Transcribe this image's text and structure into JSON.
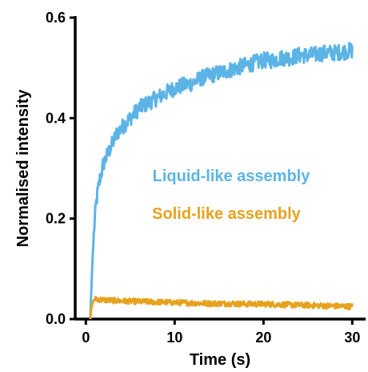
{
  "chart_data": {
    "type": "line",
    "xlabel": "Time (s)",
    "ylabel": "Normalised intensity",
    "xlim": [
      -1.2,
      31.5
    ],
    "ylim": [
      0,
      0.6
    ],
    "x_ticks": [
      0,
      10,
      20,
      30
    ],
    "y_ticks": [
      0.0,
      0.2,
      0.4,
      0.6
    ],
    "x_tick_labels": [
      "0",
      "10",
      "20",
      "30"
    ],
    "y_tick_labels": [
      "0.0",
      "0.2",
      "0.4",
      "0.6"
    ],
    "grid": false,
    "legend": "inline labels, center-left",
    "series": [
      {
        "name": "Liquid-like assembly",
        "color": "#5cb4e6",
        "x": [
          0.5,
          0.7,
          0.9,
          1.1,
          1.3,
          1.6,
          2.0,
          2.5,
          3.0,
          3.5,
          4.0,
          5.0,
          6.0,
          7.0,
          8.0,
          9.0,
          10.0,
          11.0,
          12.0,
          13.0,
          14.0,
          15.0,
          16.0,
          17.0,
          18.0,
          19.0,
          20.0,
          21.0,
          22.0,
          23.0,
          24.0,
          25.0,
          26.0,
          27.0,
          28.0,
          29.0,
          30.0
        ],
        "values": [
          0.0,
          0.1,
          0.17,
          0.22,
          0.25,
          0.28,
          0.31,
          0.33,
          0.35,
          0.37,
          0.38,
          0.4,
          0.42,
          0.43,
          0.44,
          0.45,
          0.46,
          0.465,
          0.47,
          0.48,
          0.485,
          0.49,
          0.495,
          0.5,
          0.505,
          0.51,
          0.515,
          0.515,
          0.52,
          0.52,
          0.525,
          0.525,
          0.527,
          0.53,
          0.53,
          0.532,
          0.535
        ]
      },
      {
        "name": "Solid-like assembly",
        "color": "#e6a21e",
        "x": [
          0.5,
          0.6,
          0.8,
          1.0,
          2.0,
          4.0,
          6.0,
          8.0,
          10.0,
          12.0,
          14.0,
          16.0,
          18.0,
          20.0,
          22.0,
          24.0,
          26.0,
          28.0,
          30.0
        ],
        "values": [
          0.0,
          0.02,
          0.035,
          0.04,
          0.038,
          0.036,
          0.035,
          0.034,
          0.033,
          0.032,
          0.031,
          0.031,
          0.03,
          0.03,
          0.029,
          0.028,
          0.027,
          0.026,
          0.025
        ]
      }
    ]
  }
}
